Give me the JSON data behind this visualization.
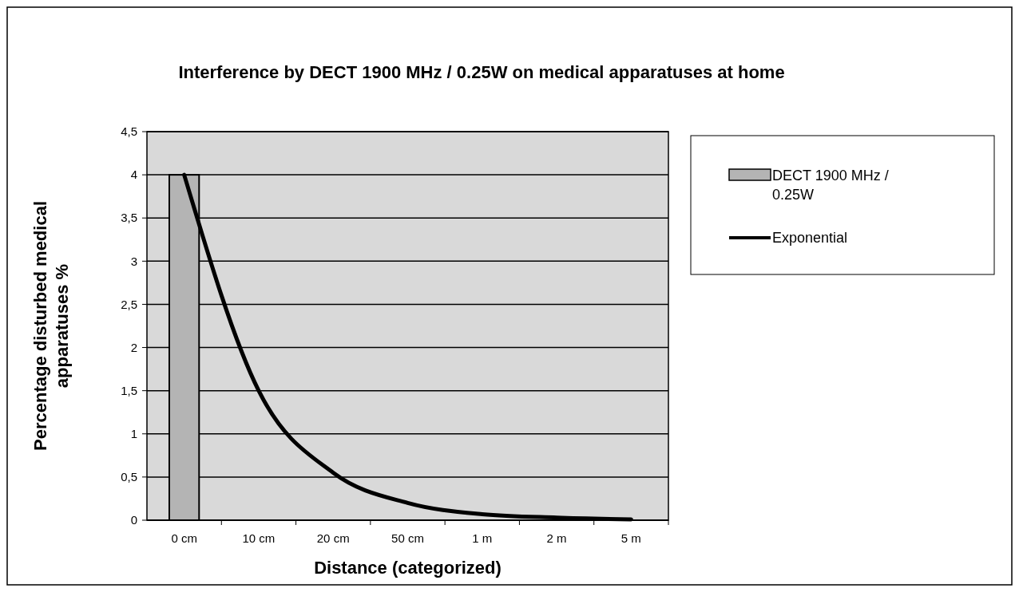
{
  "chart_data": {
    "type": "bar",
    "title": "Interference by DECT 1900 MHz / 0.25W on medical apparatuses at home",
    "xlabel": "Distance (categorized)",
    "ylabel": "Percentage disturbed medical apparatuses %",
    "categories": [
      "0 cm",
      "10 cm",
      "20 cm",
      "50 cm",
      "1 m",
      "2 m",
      "5 m"
    ],
    "series": [
      {
        "name": "DECT 1900 MHz / 0.25W",
        "color": "#b4b4b4",
        "values": [
          4,
          0,
          0,
          0,
          0,
          0,
          0
        ]
      },
      {
        "name": "Exponential",
        "type": "line",
        "color": "#000000",
        "values": [
          4,
          1.5,
          0.55,
          0.2,
          0.07,
          0.03,
          0.01
        ]
      }
    ],
    "ylim": [
      0,
      4.5
    ],
    "yticks": [
      {
        "value": 0,
        "label": "0"
      },
      {
        "value": 0.5,
        "label": "0,5"
      },
      {
        "value": 1,
        "label": "1"
      },
      {
        "value": 1.5,
        "label": "1,5"
      },
      {
        "value": 2,
        "label": "2"
      },
      {
        "value": 2.5,
        "label": "2,5"
      },
      {
        "value": 3,
        "label": "3"
      },
      {
        "value": 3.5,
        "label": "3,5"
      },
      {
        "value": 4,
        "label": "4"
      },
      {
        "value": 4.5,
        "label": "4,5"
      }
    ],
    "grid": "y",
    "legend": "right",
    "marker": "none"
  }
}
